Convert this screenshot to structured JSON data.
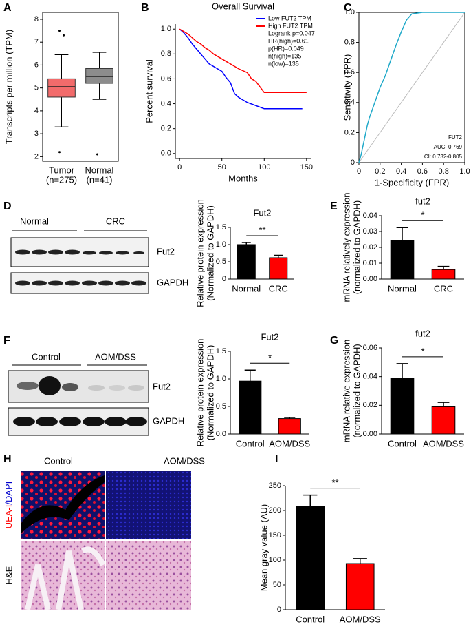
{
  "chart_data": [
    {
      "type": "box",
      "panel": "A",
      "y_label": "Transcripts per million (TPM)",
      "frame": true,
      "categories": [
        "Tumor",
        "Normal"
      ],
      "category_notes": [
        "(n=275)",
        "(n=41)"
      ],
      "colors": [
        "#f26b6b",
        "#8c8c8c"
      ],
      "boxes": [
        {
          "whisker_low": 3.3,
          "q1": 4.6,
          "median": 5.05,
          "q3": 5.4,
          "whisker_high": 6.45
        },
        {
          "whisker_low": 4.5,
          "q1": 5.2,
          "median": 5.5,
          "q3": 5.85,
          "whisker_high": 6.55
        }
      ],
      "outliers": [
        [
          7.5,
          7.3,
          2.2
        ],
        [
          2.1
        ]
      ],
      "ylim": [
        1.8,
        8.3
      ],
      "yticks": [
        2,
        3,
        4,
        5,
        6,
        7,
        8
      ]
    },
    {
      "type": "line",
      "panel": "B",
      "title": "Overall Survival",
      "x_label": "Months",
      "y_label": "Percent survival",
      "series": [
        {
          "name": "Low FUT2 TPM",
          "color": "#0000ff",
          "x": [
            0,
            5,
            10,
            15,
            20,
            25,
            30,
            35,
            40,
            45,
            50,
            55,
            60,
            65,
            70,
            75,
            80,
            100,
            145
          ],
          "values": [
            1,
            0.97,
            0.93,
            0.88,
            0.84,
            0.8,
            0.76,
            0.72,
            0.7,
            0.68,
            0.66,
            0.61,
            0.57,
            0.48,
            0.45,
            0.43,
            0.41,
            0.36,
            0.36
          ]
        },
        {
          "name": "High FUT2 TPM",
          "color": "#ff0000",
          "x": [
            0,
            5,
            10,
            15,
            20,
            25,
            30,
            35,
            40,
            45,
            50,
            55,
            60,
            65,
            70,
            80,
            85,
            90,
            100,
            150
          ],
          "values": [
            1,
            0.98,
            0.96,
            0.93,
            0.9,
            0.88,
            0.85,
            0.83,
            0.8,
            0.78,
            0.76,
            0.74,
            0.72,
            0.7,
            0.68,
            0.65,
            0.6,
            0.58,
            0.49,
            0.49
          ]
        }
      ],
      "annotations": [
        "Logrank p=0.047",
        "HR(high)=0.61",
        "p(HR)=0.049",
        "n(high)=135",
        "n(low)=135"
      ],
      "legend": "upper right",
      "xlim": [
        -5,
        155
      ],
      "xticks": [
        0,
        50,
        100,
        150
      ],
      "ylim": [
        -0.04,
        1.04
      ],
      "yticks": [
        {
          "value": 0,
          "label": "0.0"
        },
        0.2,
        0.4,
        0.6,
        0.8,
        {
          "value": 1,
          "label": "1.0"
        }
      ]
    },
    {
      "type": "roc",
      "panel": "C",
      "x_label": "1-Specificity (FPR)",
      "y_label": "Sensitivity (TPR)",
      "frame": true,
      "color": "#1fa9c9",
      "x": [
        0,
        0.02,
        0.05,
        0.08,
        0.1,
        0.15,
        0.2,
        0.25,
        0.3,
        0.35,
        0.4,
        0.45,
        0.5,
        0.6,
        0.8,
        1.0
      ],
      "values": [
        0,
        0.05,
        0.15,
        0.25,
        0.3,
        0.4,
        0.5,
        0.58,
        0.68,
        0.78,
        0.87,
        0.95,
        0.99,
        1,
        1,
        1
      ],
      "annotations": [
        "FUT2",
        "AUC: 0.769",
        "CI: 0.732-0.805"
      ],
      "xlim": [
        0,
        1
      ],
      "xticks": [
        0,
        0.2,
        0.4,
        0.6,
        0.8,
        {
          "value": 1,
          "label": "1.0"
        }
      ],
      "ylim": [
        0,
        1
      ],
      "yticks": [
        0,
        0.2,
        0.4,
        0.6,
        0.8,
        {
          "value": 1,
          "label": "1.0"
        }
      ]
    },
    {
      "type": "bar",
      "panel": "D",
      "title": "Fut2",
      "y_label": [
        "Relative protein expression",
        "(Normalized to GAPDH)"
      ],
      "categories": [
        "Normal",
        "CRC"
      ],
      "values": [
        1.0,
        0.62
      ],
      "errors": [
        0.06,
        0.07
      ],
      "colors": [
        "#000000",
        "#ff0000"
      ],
      "annotation": "**",
      "ylim": [
        0,
        1.5
      ],
      "yticks": [
        0,
        0.5,
        {
          "value": 1,
          "label": "1.0"
        },
        1.5
      ]
    },
    {
      "type": "bar",
      "panel": "E",
      "title": "fut2",
      "y_label": [
        "mRNA relatively expression",
        "(normalized to GAPDH)"
      ],
      "categories": [
        "Normal",
        "CRC"
      ],
      "values": [
        0.0245,
        0.006
      ],
      "errors": [
        0.008,
        0.002
      ],
      "colors": [
        "#000000",
        "#ff0000"
      ],
      "annotation": "*",
      "ylim": [
        0,
        0.04
      ],
      "yticks": [
        {
          "value": 0,
          "label": "0.00"
        },
        {
          "value": 0.01,
          "label": "0.01"
        },
        {
          "value": 0.02,
          "label": "0.02"
        },
        {
          "value": 0.03,
          "label": "0.03"
        },
        {
          "value": 0.04,
          "label": "0.04"
        }
      ]
    },
    {
      "type": "bar",
      "panel": "F",
      "title": "Fut2",
      "y_label": [
        "Relative protein expression",
        "(Normalized to GAPDH)"
      ],
      "categories": [
        "Control",
        "AOM/DSS"
      ],
      "values": [
        0.96,
        0.28
      ],
      "errors": [
        0.2,
        0.02
      ],
      "colors": [
        "#000000",
        "#ff0000"
      ],
      "annotation": "*",
      "ylim": [
        0,
        1.5
      ],
      "yticks": [
        {
          "value": 0,
          "label": "0.0"
        },
        0.5,
        {
          "value": 1,
          "label": "1.0"
        },
        1.5
      ]
    },
    {
      "type": "bar",
      "panel": "G",
      "title": "fut2",
      "y_label": [
        "mRNA relative expression",
        "(normalized to GAPDH)"
      ],
      "categories": [
        "Control",
        "AOM/DSS"
      ],
      "values": [
        0.039,
        0.019
      ],
      "errors": [
        0.01,
        0.003
      ],
      "colors": [
        "#000000",
        "#ff0000"
      ],
      "annotation": "*",
      "ylim": [
        0,
        0.06
      ],
      "yticks": [
        {
          "value": 0,
          "label": "0.00"
        },
        {
          "value": 0.02,
          "label": "0.02"
        },
        {
          "value": 0.04,
          "label": "0.04"
        },
        {
          "value": 0.06,
          "label": "0.06"
        }
      ]
    },
    {
      "type": "bar",
      "panel": "I",
      "y_label": "Mean gray value (AU)",
      "categories": [
        "Control",
        "AOM/DSS"
      ],
      "values": [
        209,
        93
      ],
      "errors": [
        22,
        10
      ],
      "colors": [
        "#000000",
        "#ff0000"
      ],
      "annotation": "**",
      "ylim": [
        0,
        250
      ],
      "yticks": [
        0,
        50,
        100,
        150,
        200,
        250
      ]
    }
  ],
  "blots": [
    {
      "panel": "D",
      "groups": [
        "Normal",
        "CRC"
      ],
      "bands": [
        "Fut2",
        "GAPDH"
      ]
    },
    {
      "panel": "F",
      "groups": [
        "Control",
        "AOM/DSS"
      ],
      "bands": [
        "Fut2",
        "GAPDH"
      ]
    }
  ],
  "histology": {
    "panel": "H",
    "columns": [
      "Control",
      "AOM/DSS"
    ],
    "stain_red": "UEA-I",
    "stain_blue": "/DAPI",
    "stain_he": "H&E"
  }
}
